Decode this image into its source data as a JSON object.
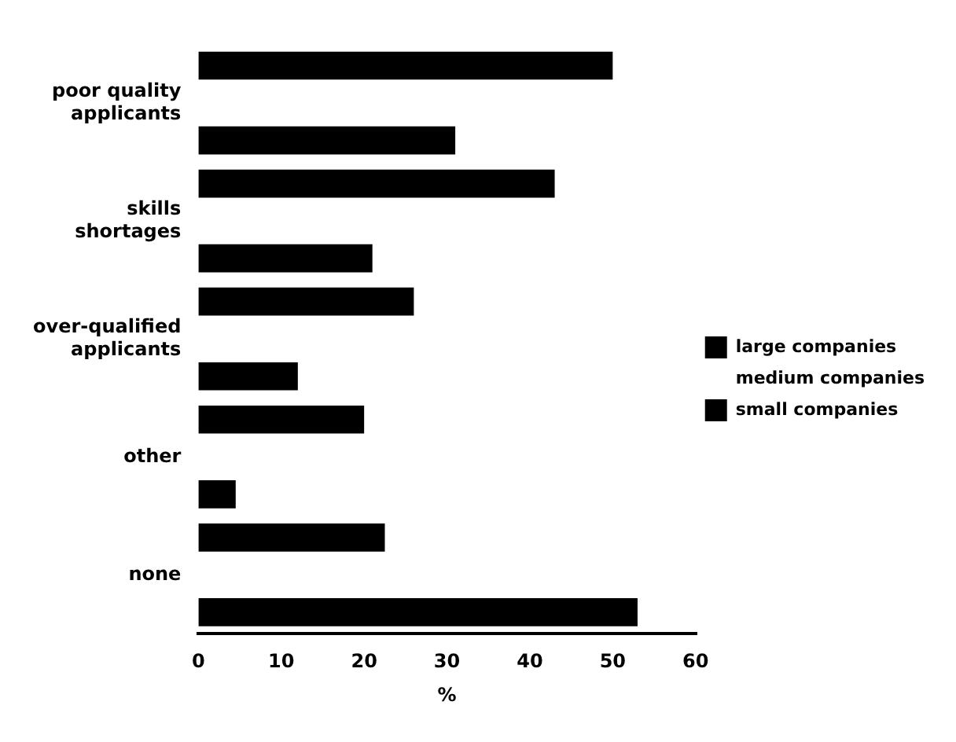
{
  "chart_data": {
    "type": "bar",
    "orientation": "horizontal",
    "xlabel": "%",
    "categories": [
      "poor quality applicants",
      "skills shortages",
      "over-qualified applicants",
      "other",
      "none"
    ],
    "series": [
      {
        "name": "large companies",
        "color": "#000000",
        "values": [
          50,
          43,
          26,
          20,
          22.5
        ]
      },
      {
        "name": "medium companies",
        "values": [
          null,
          null,
          null,
          null,
          null
        ]
      },
      {
        "name": "small companies",
        "color": "#000000",
        "values": [
          31,
          21,
          12,
          4.5,
          53
        ]
      }
    ],
    "xlim": [
      0,
      60
    ],
    "xticks": [
      0,
      10,
      20,
      30,
      40,
      50,
      60
    ],
    "grid": false,
    "legend": "right"
  }
}
